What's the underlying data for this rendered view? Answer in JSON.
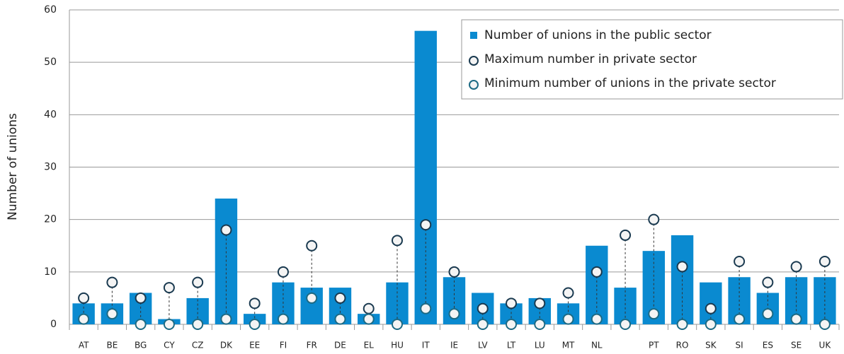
{
  "chart_data": {
    "type": "bar",
    "y_label": "Number of unions",
    "categories": [
      "AT",
      "BE",
      "BG",
      "CY",
      "CZ",
      "DK",
      "EE",
      "FI",
      "FR",
      "DE",
      "EL",
      "HU",
      "IT",
      "IE",
      "LV",
      "LT",
      "LU",
      "MT",
      "NL",
      null,
      "PT",
      "RO",
      "SK",
      "SI",
      "ES",
      "SE",
      "UK"
    ],
    "series": [
      {
        "name": "Number of unions in the public sector",
        "marker": "bar",
        "color": "#0a8ad0",
        "values": [
          4,
          4,
          6,
          1,
          5,
          24,
          2,
          8,
          7,
          7,
          2,
          8,
          56,
          9,
          6,
          4,
          5,
          4,
          15,
          7,
          14,
          17,
          8,
          9,
          6,
          9,
          9
        ]
      },
      {
        "name": "Maximum number in private sector",
        "marker": "circle",
        "color": "#1a3a50",
        "values": [
          5,
          8,
          5,
          7,
          8,
          18,
          4,
          10,
          15,
          5,
          3,
          16,
          19,
          10,
          3,
          4,
          4,
          6,
          10,
          17,
          20,
          11,
          3,
          12,
          8,
          11,
          12
        ]
      },
      {
        "name": "Minimum number of unions in the private sector",
        "marker": "circle",
        "color": "#1d6a84",
        "values": [
          1,
          2,
          0,
          0,
          0,
          1,
          0,
          1,
          5,
          1,
          1,
          0,
          3,
          2,
          0,
          0,
          0,
          1,
          1,
          0,
          2,
          0,
          0,
          1,
          2,
          1,
          0
        ]
      }
    ],
    "ylim": [
      0,
      60
    ],
    "yticks": [
      0,
      10,
      20,
      30,
      40,
      50,
      60
    ],
    "grid": true,
    "legend": "top-right"
  }
}
